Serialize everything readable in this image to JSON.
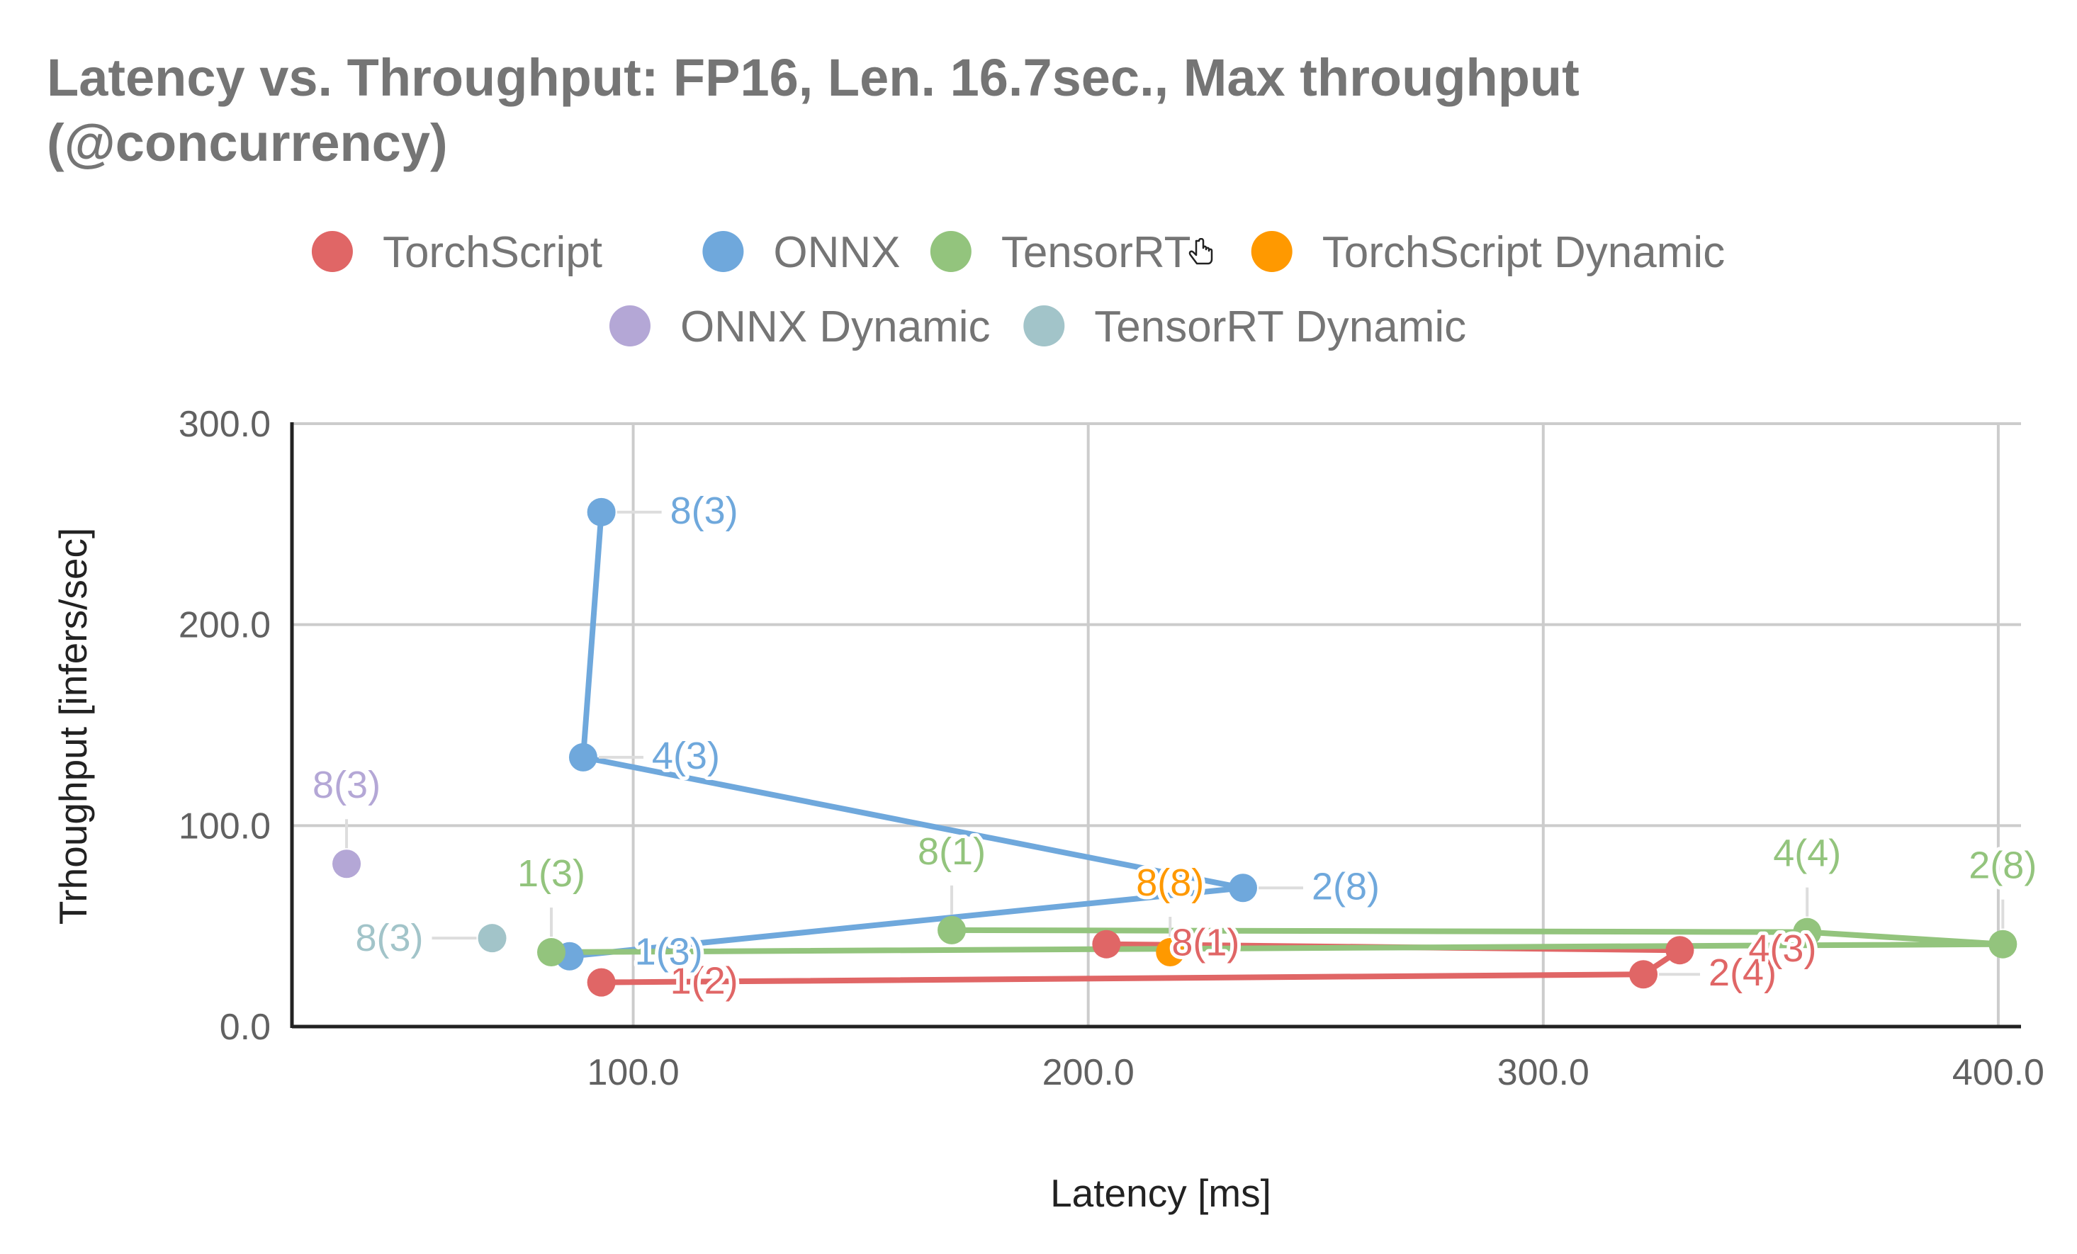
{
  "chart_data": {
    "type": "scatter",
    "title": "Latency vs. Throughput: FP16, Len. 16.7sec., Max throughput (@concurrency)",
    "xlabel": "Latency [ms]",
    "ylabel": "Trhoughput [infers/sec]",
    "xlim": [
      25,
      405
    ],
    "ylim": [
      0,
      300
    ],
    "x_ticks": [
      100,
      200,
      300,
      400
    ],
    "x_tick_labels": [
      "100.0",
      "200.0",
      "300.0",
      "400.0"
    ],
    "y_ticks": [
      0,
      100,
      200,
      300
    ],
    "y_tick_labels": [
      "0.0",
      "100.0",
      "200.0",
      "300.0"
    ],
    "grid": true,
    "legend_position": "top",
    "series": [
      {
        "name": "TorchScript",
        "color": "#e06666",
        "connected": true,
        "points": [
          {
            "x": 93,
            "y": 22,
            "label": "1(2)"
          },
          {
            "x": 322,
            "y": 26,
            "label": "2(4)"
          },
          {
            "x": 330,
            "y": 38,
            "label": "4(3)"
          },
          {
            "x": 204,
            "y": 41,
            "label": "8(1)"
          }
        ]
      },
      {
        "name": "ONNX",
        "color": "#6fa8dc",
        "connected": true,
        "points": [
          {
            "x": 86,
            "y": 35,
            "label": "1(3)"
          },
          {
            "x": 234,
            "y": 69,
            "label": "2(8)"
          },
          {
            "x": 89,
            "y": 134,
            "label": "4(3)"
          },
          {
            "x": 93,
            "y": 256,
            "label": "8(3)"
          }
        ]
      },
      {
        "name": "TensorRT",
        "color": "#93c47d",
        "connected": true,
        "points": [
          {
            "x": 82,
            "y": 37,
            "label": "1(3)"
          },
          {
            "x": 401,
            "y": 41,
            "label": "2(8)"
          },
          {
            "x": 358,
            "y": 47,
            "label": "4(4)"
          },
          {
            "x": 170,
            "y": 48,
            "label": "8(1)"
          }
        ]
      },
      {
        "name": "TorchScript Dynamic",
        "color": "#ff9900",
        "connected": false,
        "points": [
          {
            "x": 218,
            "y": 37,
            "label": "8(8)"
          }
        ]
      },
      {
        "name": "ONNX Dynamic",
        "color": "#b4a7d6",
        "connected": false,
        "points": [
          {
            "x": 37,
            "y": 81,
            "label": "8(3)"
          }
        ]
      },
      {
        "name": "TensorRT Dynamic",
        "color": "#a2c4c9",
        "connected": false,
        "points": [
          {
            "x": 69,
            "y": 44,
            "label": "8(3)"
          }
        ]
      }
    ]
  },
  "icons": {
    "cursor": "hand-pointer-icon"
  }
}
